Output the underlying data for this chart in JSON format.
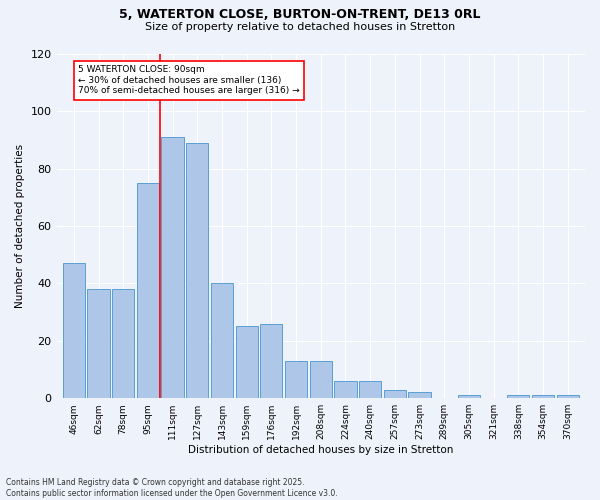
{
  "title_line1": "5, WATERTON CLOSE, BURTON-ON-TRENT, DE13 0RL",
  "title_line2": "Size of property relative to detached houses in Stretton",
  "xlabel": "Distribution of detached houses by size in Stretton",
  "ylabel": "Number of detached properties",
  "categories": [
    "46sqm",
    "62sqm",
    "78sqm",
    "95sqm",
    "111sqm",
    "127sqm",
    "143sqm",
    "159sqm",
    "176sqm",
    "192sqm",
    "208sqm",
    "224sqm",
    "240sqm",
    "257sqm",
    "273sqm",
    "289sqm",
    "305sqm",
    "321sqm",
    "338sqm",
    "354sqm",
    "370sqm"
  ],
  "values": [
    47,
    38,
    38,
    75,
    91,
    89,
    40,
    25,
    26,
    13,
    13,
    6,
    6,
    3,
    2,
    0,
    1,
    0,
    1,
    1,
    1
  ],
  "bar_color": "#aec6e8",
  "bar_edge_color": "#5a9fd4",
  "background_color": "#eef2fa",
  "grid_color": "#ffffff",
  "vline_x": 3.5,
  "vline_color": "red",
  "annotation_text": "5 WATERTON CLOSE: 90sqm\n← 30% of detached houses are smaller (136)\n70% of semi-detached houses are larger (316) →",
  "annotation_box_color": "white",
  "annotation_box_edge": "red",
  "ylim": [
    0,
    120
  ],
  "yticks": [
    0,
    20,
    40,
    60,
    80,
    100,
    120
  ],
  "footnote": "Contains HM Land Registry data © Crown copyright and database right 2025.\nContains public sector information licensed under the Open Government Licence v3.0."
}
